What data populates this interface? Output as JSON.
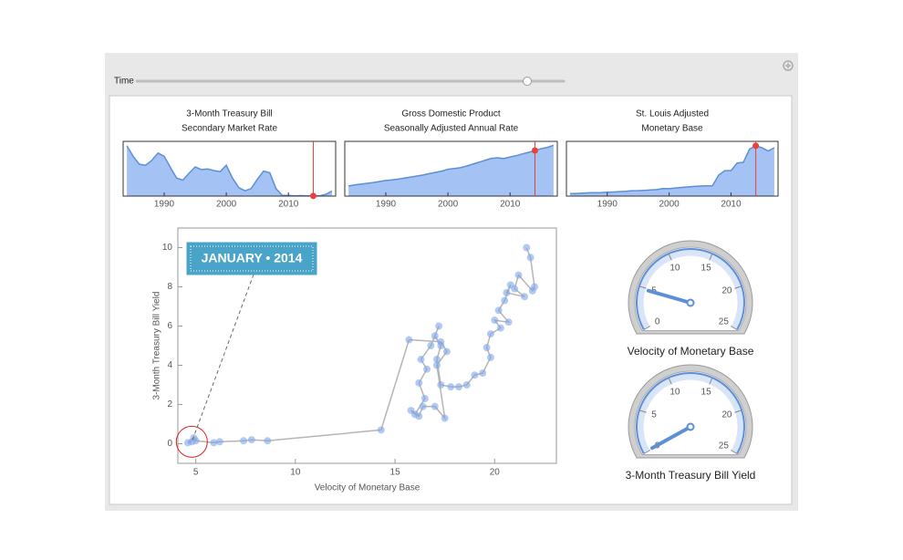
{
  "controls": {
    "slider": {
      "label": "Time",
      "min": 1984,
      "max": 2016.8,
      "value": 2014.0
    }
  },
  "chart_data": [
    {
      "type": "area",
      "title": "3-Month Treasury Bill",
      "subtitle": "Secondary Market Rate",
      "x": [
        1984,
        1985,
        1986,
        1987,
        1988,
        1989,
        1990,
        1991,
        1992,
        1993,
        1994,
        1995,
        1996,
        1997,
        1998,
        1999,
        2000,
        2001,
        2002,
        2003,
        2004,
        2005,
        2006,
        2007,
        2008,
        2009,
        2010,
        2011,
        2012,
        2013,
        2014,
        2015,
        2016,
        2017
      ],
      "values": [
        9.5,
        7.5,
        6.0,
        5.8,
        6.7,
        8.1,
        7.5,
        5.4,
        3.4,
        3.0,
        4.3,
        5.5,
        5.0,
        5.1,
        4.8,
        4.6,
        5.8,
        3.4,
        1.6,
        1.0,
        1.4,
        3.2,
        4.7,
        4.4,
        1.4,
        0.15,
        0.14,
        0.05,
        0.09,
        0.06,
        0.03,
        0.05,
        0.32,
        0.93
      ],
      "color": "#a4c2f4",
      "line_color": "#5d8fd8",
      "xlim": [
        1983.4,
        2017.6
      ],
      "ylim": [
        0,
        10.3
      ],
      "xticks": [
        1990,
        2000,
        2010
      ],
      "marker": {
        "x": 2014,
        "y": 0.03,
        "color": "#e8413c"
      }
    },
    {
      "type": "area",
      "title": "Gross Domestic Product",
      "subtitle": "Seasonally Adjusted Annual Rate",
      "x": [
        1984,
        1985,
        1986,
        1987,
        1988,
        1989,
        1990,
        1991,
        1992,
        1993,
        1994,
        1995,
        1996,
        1997,
        1998,
        1999,
        2000,
        2001,
        2002,
        2003,
        2004,
        2005,
        2006,
        2007,
        2008,
        2009,
        2010,
        2011,
        2012,
        2013,
        2014,
        2015,
        2016,
        2017
      ],
      "values": [
        3.9,
        4.3,
        4.6,
        4.9,
        5.2,
        5.6,
        6.0,
        6.2,
        6.5,
        6.9,
        7.3,
        7.7,
        8.1,
        8.6,
        9.1,
        9.6,
        10.3,
        10.6,
        10.9,
        11.5,
        12.3,
        13.0,
        13.8,
        14.5,
        14.7,
        14.4,
        15.0,
        15.5,
        16.2,
        16.8,
        17.5,
        18.2,
        18.7,
        19.5
      ],
      "color": "#a4c2f4",
      "line_color": "#5d8fd8",
      "xlim": [
        1983.4,
        2017.6
      ],
      "ylim": [
        0,
        21
      ],
      "xticks": [
        1990,
        2000,
        2010
      ],
      "marker": {
        "x": 2014,
        "y": 17.5,
        "color": "#e8413c"
      }
    },
    {
      "type": "area",
      "title": "St. Louis Adjusted",
      "subtitle": "Monetary Base",
      "x": [
        1984,
        1985,
        1986,
        1987,
        1988,
        1989,
        1990,
        1991,
        1992,
        1993,
        1994,
        1995,
        1996,
        1997,
        1998,
        1999,
        2000,
        2001,
        2002,
        2003,
        2004,
        2005,
        2006,
        2007,
        2008,
        2009,
        2010,
        2011,
        2012,
        2013,
        2014,
        2015,
        2016,
        2017
      ],
      "values": [
        190,
        205,
        230,
        255,
        270,
        280,
        300,
        320,
        350,
        380,
        420,
        430,
        450,
        480,
        510,
        590,
        580,
        640,
        680,
        720,
        760,
        790,
        810,
        820,
        1650,
        2000,
        2000,
        2600,
        2650,
        3700,
        3950,
        3800,
        3550,
        3800
      ],
      "color": "#a4c2f4",
      "line_color": "#5d8fd8",
      "xlim": [
        1983.4,
        2017.6
      ],
      "ylim": [
        0,
        4300
      ],
      "xticks": [
        1990,
        2000,
        2010
      ],
      "marker": {
        "x": 2014,
        "y": 3950,
        "color": "#e8413c"
      }
    },
    {
      "type": "scatter",
      "x_label": "Velocity of Monetary Base",
      "y_label": "3-Month Treasury Bill Yield",
      "x": [
        21.6,
        21.8,
        22.0,
        21.9,
        21.2,
        21.0,
        21.5,
        20.6,
        20.8,
        20.5,
        20.2,
        20.7,
        20.0,
        20.3,
        19.8,
        19.6,
        19.8,
        19.4,
        19.0,
        18.6,
        18.2,
        17.8,
        17.3,
        17.1,
        17.3,
        17.0,
        17.2,
        16.8,
        16.3,
        16.6,
        16.2,
        16.5,
        16.0,
        15.8,
        16.2,
        16.4,
        17.0,
        17.5,
        17.1,
        17.6,
        17.3,
        15.7,
        14.3,
        8.6,
        7.8,
        7.4,
        6.2,
        5.9,
        5.0,
        4.9,
        4.6,
        4.8
      ],
      "values": [
        10.0,
        9.5,
        8.0,
        7.8,
        8.6,
        7.9,
        7.5,
        7.7,
        8.1,
        7.3,
        6.8,
        6.2,
        6.3,
        5.9,
        5.6,
        4.9,
        4.4,
        3.6,
        3.5,
        3.0,
        2.9,
        2.9,
        3.0,
        4.3,
        5.0,
        5.5,
        6.0,
        5.0,
        4.3,
        3.8,
        3.1,
        2.3,
        1.5,
        1.7,
        1.4,
        1.9,
        1.9,
        1.3,
        4.0,
        4.7,
        5.2,
        5.3,
        0.7,
        0.15,
        0.2,
        0.15,
        0.1,
        0.05,
        0.15,
        0.3,
        0.05,
        0.1
      ],
      "color": "#7fa7e8",
      "line_color": "#b5b5b5",
      "xlim": [
        4.1,
        23.1
      ],
      "ylim": [
        -1,
        11
      ],
      "xticks": [
        5,
        10,
        15,
        20
      ],
      "yticks": [
        0,
        2,
        4,
        6,
        8,
        10
      ],
      "annotation": "JANUARY • 2014",
      "annotation_color": "#4aa3c8",
      "highlight_color": "#e02020"
    },
    {
      "type": "gauge",
      "label": "Velocity of Monetary Base",
      "value": 4.8,
      "range": [
        0,
        25
      ],
      "ticks": [
        0,
        5,
        10,
        15,
        20,
        25
      ],
      "color": "#5d8fd8"
    },
    {
      "type": "gauge",
      "label": "3-Month Treasury Bill Yield",
      "value": 0.1,
      "range": [
        0,
        25
      ],
      "ticks": [
        0,
        5,
        10,
        15,
        20,
        25
      ],
      "color": "#5d8fd8"
    }
  ]
}
